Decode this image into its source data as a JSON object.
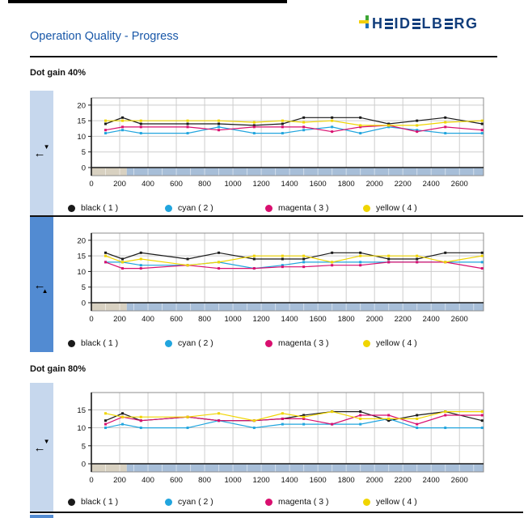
{
  "page": {
    "title": "Operation Quality - Progress"
  },
  "logo": {
    "name": "HEIDELBERG",
    "letters": [
      "H",
      "E",
      "I",
      "D",
      "E",
      "L",
      "B",
      "E",
      "R",
      "G"
    ],
    "colors": {
      "navy": "#123e7c",
      "yellow": "#f2cf0d",
      "green": "#3da535",
      "blue": "#1e6fb8"
    }
  },
  "sections": [
    {
      "heading": "Dot gain 40%"
    },
    {
      "heading": "Dot gain 80%"
    }
  ],
  "legend": {
    "items": [
      {
        "name": "black",
        "label": "black ( 1 )",
        "color": "#1a1a1a"
      },
      {
        "name": "cyan",
        "label": "cyan ( 2 )",
        "color": "#21a5de"
      },
      {
        "name": "magenta",
        "label": "magenta ( 3 )",
        "color": "#d90f6f"
      },
      {
        "name": "yellow",
        "label": "yellow ( 4 )",
        "color": "#f0d500"
      }
    ]
  },
  "sidebar_icons": [
    {
      "variant": "down",
      "glyphs": {
        "arrow": "←",
        "triangle": "▼"
      }
    },
    {
      "variant": "up",
      "glyphs": {
        "arrow": "←",
        "triangle": "▲"
      }
    },
    {
      "variant": "down",
      "glyphs": {
        "arrow": "←",
        "triangle": "▼"
      }
    }
  ],
  "axes": {
    "x_ticks": [
      0,
      200,
      400,
      600,
      800,
      1000,
      1200,
      1400,
      1600,
      1800,
      2000,
      2200,
      2400,
      2600
    ],
    "x_max": 2770,
    "band": {
      "tan_until": 250,
      "tan_color": "#d8d1c1",
      "blue_color": "#a7bed8",
      "tick_step": 100
    }
  },
  "chart_data": [
    {
      "type": "line",
      "title": "Dot gain 40%",
      "x": [
        100,
        220,
        350,
        680,
        900,
        1150,
        1350,
        1500,
        1700,
        1900,
        2100,
        2300,
        2500,
        2760
      ],
      "y_ticks": [
        0,
        5,
        10,
        15,
        20
      ],
      "ylim": [
        0,
        22.3
      ],
      "series": [
        {
          "name": "black ( 1 )",
          "color": "#1a1a1a",
          "values": [
            14,
            16,
            14,
            14,
            14,
            13.5,
            14,
            16,
            16,
            16,
            14,
            15,
            16,
            14
          ]
        },
        {
          "name": "cyan ( 2 )",
          "color": "#21a5de",
          "values": [
            11,
            12,
            11,
            11,
            13,
            11,
            11,
            12,
            13,
            11,
            13,
            12,
            11,
            11
          ]
        },
        {
          "name": "magenta ( 3 )",
          "color": "#d90f6f",
          "values": [
            12,
            13,
            13,
            13,
            12,
            13,
            13,
            13,
            11.5,
            13,
            13.5,
            11.5,
            13,
            12
          ]
        },
        {
          "name": "yellow ( 4 )",
          "color": "#f0d500",
          "values": [
            15,
            15,
            15,
            15,
            15,
            14.5,
            15,
            14.5,
            15,
            13.5,
            13.5,
            13.5,
            14.5,
            15
          ]
        }
      ]
    },
    {
      "type": "line",
      "title": "Dot gain 40%",
      "x": [
        100,
        220,
        350,
        680,
        900,
        1150,
        1350,
        1500,
        1700,
        1900,
        2100,
        2300,
        2500,
        2760
      ],
      "y_ticks": [
        0,
        5,
        10,
        15,
        20
      ],
      "ylim": [
        0,
        22.3
      ],
      "series": [
        {
          "name": "black ( 1 )",
          "color": "#1a1a1a",
          "values": [
            16,
            14,
            16,
            14,
            16,
            14,
            14,
            14,
            16,
            16,
            14,
            14,
            16,
            16
          ]
        },
        {
          "name": "cyan ( 2 )",
          "color": "#21a5de",
          "values": [
            13,
            13,
            12,
            12,
            13,
            11,
            12,
            13,
            13,
            13,
            13,
            13,
            13,
            13
          ]
        },
        {
          "name": "magenta ( 3 )",
          "color": "#d90f6f",
          "values": [
            13,
            11,
            11,
            12,
            11,
            11,
            11.5,
            11.5,
            12,
            12,
            13,
            13,
            13,
            11
          ]
        },
        {
          "name": "yellow ( 4 )",
          "color": "#f0d500",
          "values": [
            15,
            13,
            14,
            12,
            13,
            15,
            15,
            15,
            13,
            15,
            15,
            15,
            13,
            15
          ]
        }
      ]
    },
    {
      "type": "line",
      "title": "Dot gain 80%",
      "x": [
        100,
        220,
        350,
        680,
        900,
        1150,
        1350,
        1500,
        1700,
        1900,
        2100,
        2300,
        2500,
        2760
      ],
      "y_ticks": [
        0,
        5,
        10,
        15
      ],
      "ylim": [
        0,
        19.8
      ],
      "series": [
        {
          "name": "black ( 1 )",
          "color": "#1a1a1a",
          "values": [
            12,
            14,
            12,
            13,
            12,
            12,
            12.5,
            13.5,
            14.5,
            14.5,
            12,
            13.5,
            14.5,
            12
          ]
        },
        {
          "name": "cyan ( 2 )",
          "color": "#21a5de",
          "values": [
            10,
            11,
            10,
            10,
            12,
            10,
            11,
            11,
            11,
            11,
            12.5,
            10,
            10,
            10
          ]
        },
        {
          "name": "magenta ( 3 )",
          "color": "#d90f6f",
          "values": [
            11,
            13,
            12,
            13,
            12,
            12,
            12.5,
            12.5,
            11,
            13.5,
            13.5,
            11,
            13.5,
            13.5
          ]
        },
        {
          "name": "yellow ( 4 )",
          "color": "#f0d500",
          "values": [
            14,
            13,
            13,
            13,
            14,
            12,
            14,
            13,
            14.5,
            12.5,
            12.5,
            12.5,
            14.5,
            14.5
          ]
        }
      ]
    }
  ]
}
